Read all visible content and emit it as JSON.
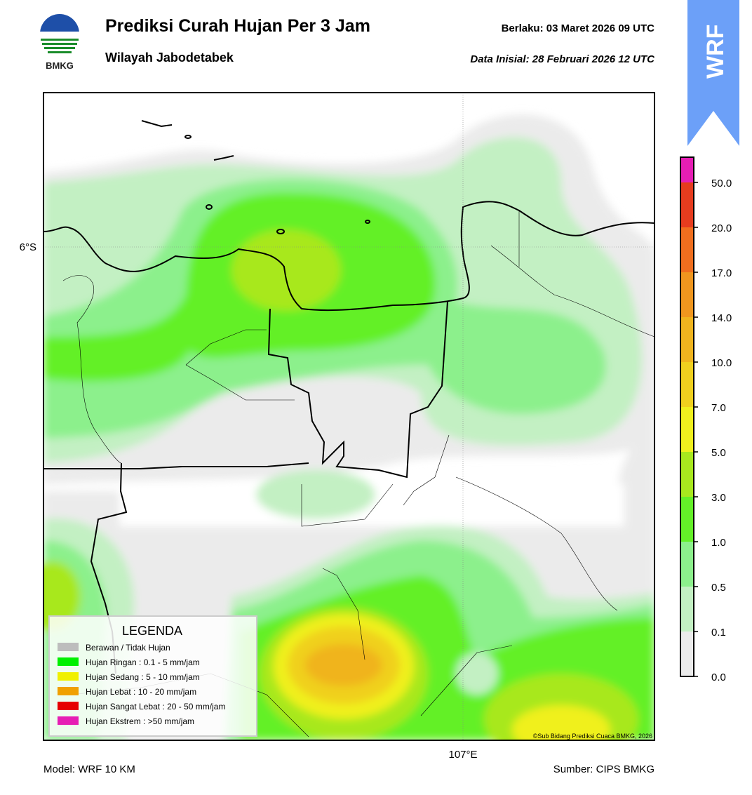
{
  "header": {
    "logo_text": "BMKG",
    "title": "Prediksi Curah Hujan Per 3 Jam",
    "subtitle": "Wilayah Jabodetabek",
    "valid": "Berlaku:  03 Maret 2026 09 UTC",
    "init": "Data Inisial:  28 Februari 2026 12 UTC",
    "badge": "WRF"
  },
  "map": {
    "lat_label": "6°S",
    "lon_label": "107°E",
    "credit": "©Sub Bidang Prediksi Cuaca BMKG, 2026"
  },
  "legend": {
    "title": "LEGENDA",
    "items": [
      {
        "label": "Berawan / Tidak Hujan",
        "color": "#bdbdbd"
      },
      {
        "label": "Hujan Ringan : 0.1 - 5 mm/jam",
        "color": "#00f000"
      },
      {
        "label": "Hujan Sedang : 5 - 10 mm/jam",
        "color": "#f0f000"
      },
      {
        "label": "Hujan Lebat : 10 - 20 mm/jam",
        "color": "#f0a000"
      },
      {
        "label": "Hujan Sangat Lebat : 20 - 50 mm/jam",
        "color": "#e60000"
      },
      {
        "label": "Hujan Ekstrem : >50 mm/jam",
        "color": "#e61eb4"
      }
    ]
  },
  "colorbar": {
    "labels": [
      "0.0",
      "0.1",
      "0.5",
      "1.0",
      "3.0",
      "5.0",
      "7.0",
      "10.0",
      "14.0",
      "17.0",
      "20.0",
      "50.0"
    ],
    "colors": [
      "#ebebeb",
      "#c3f0c3",
      "#8cf08c",
      "#64f028",
      "#a8e81e",
      "#f0f01e",
      "#f0d01e",
      "#f0b41e",
      "#f0961e",
      "#f06e1e",
      "#e63c1e",
      "#e61eb4"
    ]
  },
  "footer": {
    "model": "Model: WRF 10 KM",
    "source": "Sumber: CIPS BMKG"
  }
}
